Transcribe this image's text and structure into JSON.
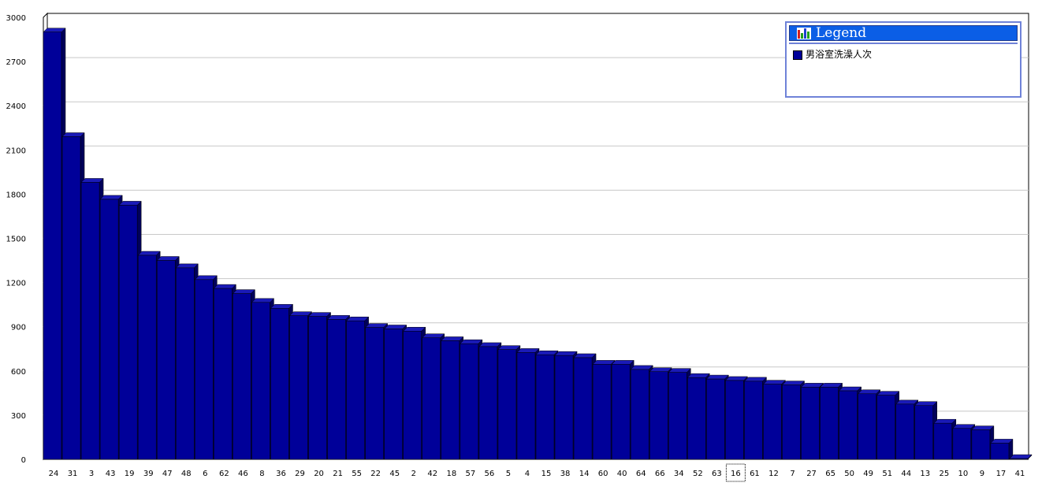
{
  "chart_data": {
    "type": "bar",
    "categories": [
      "24",
      "31",
      "3",
      "43",
      "19",
      "39",
      "47",
      "48",
      "6",
      "62",
      "46",
      "8",
      "36",
      "29",
      "20",
      "21",
      "55",
      "22",
      "45",
      "2",
      "42",
      "18",
      "57",
      "56",
      "5",
      "4",
      "15",
      "38",
      "14",
      "60",
      "40",
      "64",
      "66",
      "34",
      "52",
      "63",
      "16",
      "61",
      "12",
      "7",
      "27",
      "65",
      "50",
      "49",
      "51",
      "44",
      "13",
      "25",
      "10",
      "9",
      "17",
      "41"
    ],
    "series": [
      {
        "name": "男浴室洗澡人次",
        "values": [
          2900,
          2190,
          1880,
          1765,
          1725,
          1385,
          1350,
          1300,
          1220,
          1160,
          1125,
          1065,
          1025,
          975,
          970,
          950,
          940,
          895,
          885,
          870,
          825,
          805,
          785,
          765,
          745,
          725,
          710,
          705,
          690,
          645,
          645,
          610,
          595,
          590,
          555,
          545,
          535,
          530,
          510,
          505,
          490,
          490,
          465,
          445,
          435,
          375,
          365,
          245,
          210,
          200,
          110,
          5
        ]
      }
    ],
    "yticks": [
      "0",
      "300",
      "600",
      "900",
      "1200",
      "1500",
      "1800",
      "2100",
      "2400",
      "2700",
      "3000"
    ],
    "ylim": [
      0,
      3000
    ],
    "grid": true,
    "legend_position": "top-right",
    "focused_category": "16"
  },
  "legend": {
    "title": "Legend",
    "items": [
      {
        "label": "男浴室洗澡人次",
        "color": "#000099"
      }
    ]
  },
  "colors": {
    "bar_face": "#000099",
    "bar_top": "#1a1ab8",
    "bar_side": "#00005a",
    "grid": "#c8c8c8",
    "legend_header": "#0b5ee6",
    "legend_border": "#6f82d8"
  }
}
